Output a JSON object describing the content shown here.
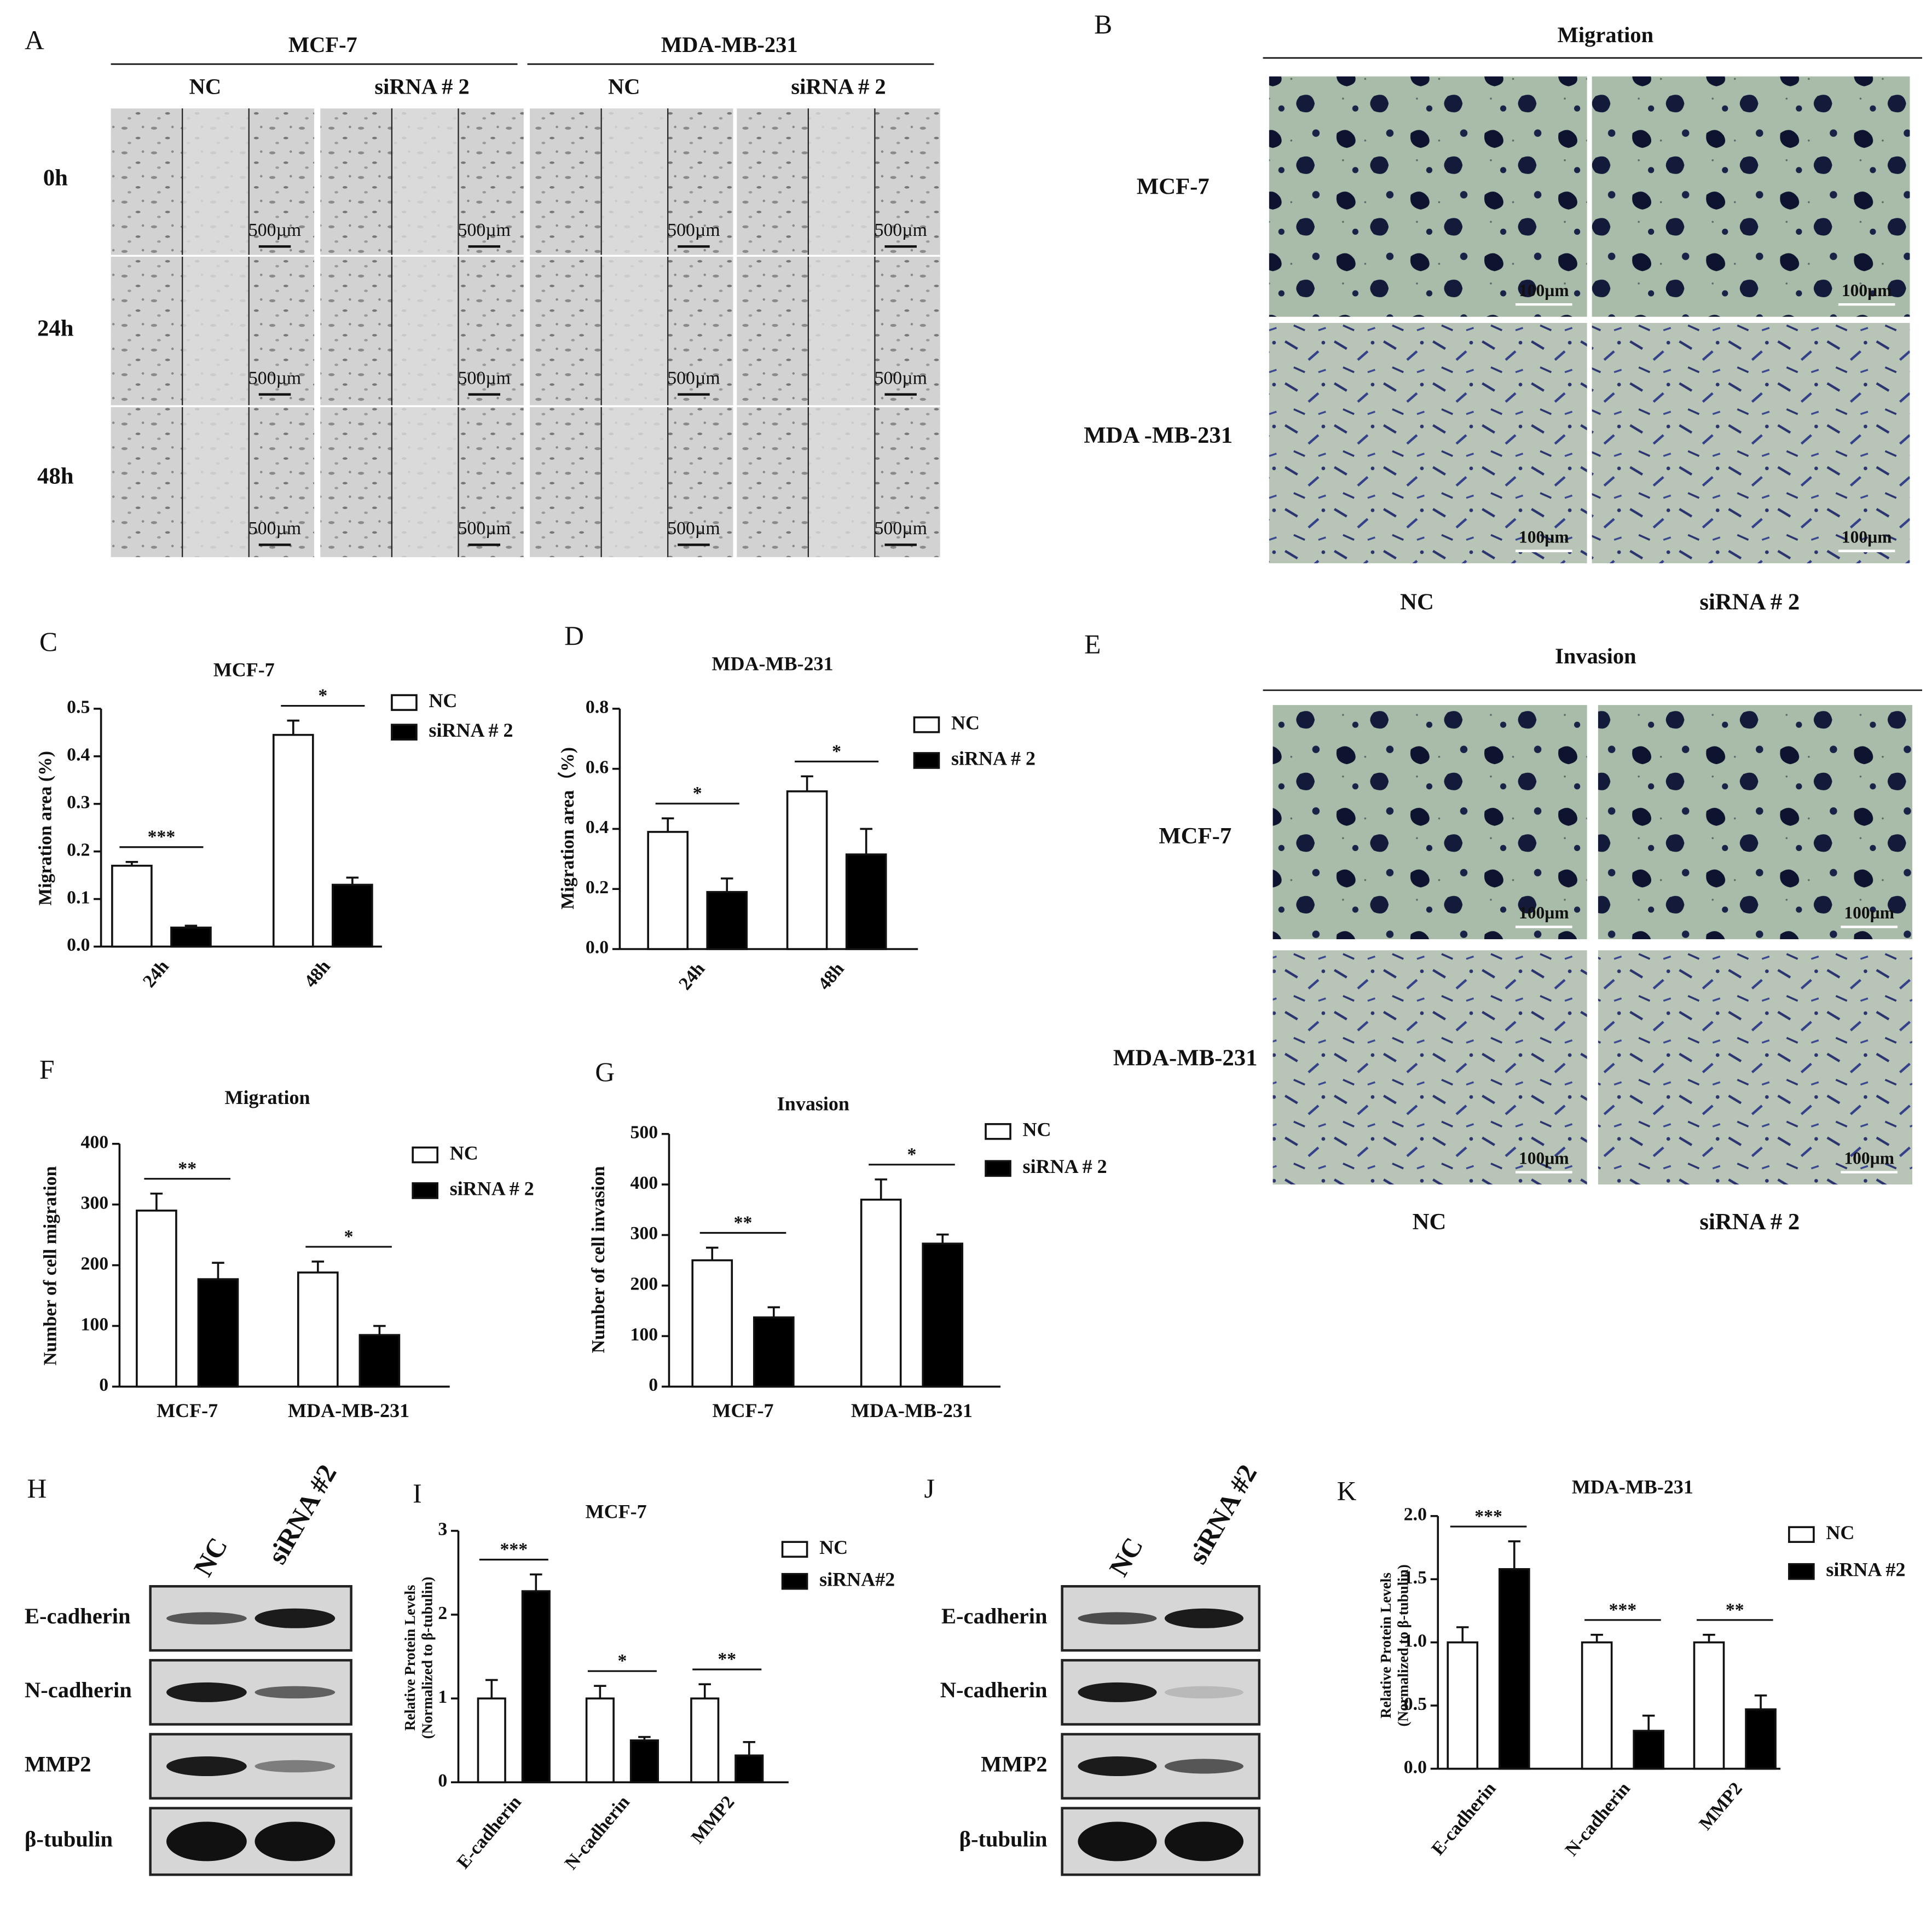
{
  "panel_letters": [
    "A",
    "B",
    "C",
    "D",
    "E",
    "F",
    "G",
    "H",
    "I",
    "J",
    "K"
  ],
  "panel_a": {
    "groups": [
      "MCF-7",
      "MDA-MB-231"
    ],
    "conditions": [
      "NC",
      "siRNA # 2",
      "NC",
      "siRNA # 2"
    ],
    "timepoints": [
      "0h",
      "24h",
      "48h"
    ],
    "scale_bar": "500µm"
  },
  "panel_b": {
    "title": "Migration",
    "rows": [
      "MCF-7",
      "MDA -MB-231"
    ],
    "columns": [
      "NC",
      "siRNA #  2"
    ],
    "scale_bar": "100µm"
  },
  "panel_e": {
    "title": "Invasion",
    "rows": [
      "MCF-7",
      "MDA-MB-231"
    ],
    "columns": [
      "NC",
      "siRNA   # 2"
    ],
    "scale_bar": "100µm"
  },
  "panel_h": {
    "columns": [
      "NC",
      "siRNA #2"
    ],
    "rows": [
      "E-cadherin",
      "N-cadherin",
      "MMP2",
      "β-tubulin"
    ]
  },
  "panel_j": {
    "columns": [
      "NC",
      "siRNA #2"
    ],
    "rows": [
      "E-cadherin",
      "N-cadherin",
      "MMP2",
      "β-tubulin"
    ]
  },
  "chart_data": [
    {
      "type": "bar",
      "title": "MCF-7",
      "ylabel": "Migration area (%)",
      "categories": [
        "24h",
        "48h"
      ],
      "series": [
        {
          "name": "NC",
          "color": "#ffffff",
          "values": [
            0.17,
            0.445
          ],
          "errors": [
            0.008,
            0.03
          ]
        },
        {
          "name": "siRNA # 2",
          "color": "#000000",
          "values": [
            0.04,
            0.13
          ],
          "errors": [
            0.004,
            0.015
          ]
        }
      ],
      "significance": [
        "***",
        "*"
      ],
      "ylim": [
        0,
        0.5
      ],
      "yticks": [
        {
          "value": 0,
          "label": "0.0"
        },
        0.1,
        0.2,
        0.3,
        0.4,
        0.5
      ]
    },
    {
      "type": "bar",
      "title": "MDA-MB-231",
      "ylabel": "Migration area（%)",
      "categories": [
        "24h",
        "48h"
      ],
      "series": [
        {
          "name": "NC",
          "color": "#ffffff",
          "values": [
            0.39,
            0.525
          ],
          "errors": [
            0.045,
            0.05
          ]
        },
        {
          "name": "siRNA # 2",
          "color": "#000000",
          "values": [
            0.19,
            0.315
          ],
          "errors": [
            0.045,
            0.085
          ]
        }
      ],
      "significance": [
        "*",
        "*"
      ],
      "ylim": [
        0,
        0.8
      ],
      "yticks": [
        {
          "value": 0,
          "label": "0.0"
        },
        0.2,
        0.4,
        0.6,
        0.8
      ]
    },
    {
      "type": "bar",
      "title": "Migration",
      "ylabel": "Number of cell migration",
      "categories": [
        "MCF-7",
        "MDA-MB-231"
      ],
      "series": [
        {
          "name": "NC",
          "color": "#ffffff",
          "values": [
            290,
            188
          ],
          "errors": [
            28,
            18
          ]
        },
        {
          "name": "siRNA # 2",
          "color": "#000000",
          "values": [
            177,
            85
          ],
          "errors": [
            27,
            15
          ]
        }
      ],
      "significance": [
        "**",
        "*"
      ],
      "ylim": [
        0,
        400
      ],
      "yticks": [
        0,
        100,
        200,
        300,
        400
      ]
    },
    {
      "type": "bar",
      "title": "Invasion",
      "ylabel": "Number of cell invasion",
      "categories": [
        "MCF-7",
        "MDA-MB-231"
      ],
      "series": [
        {
          "name": "NC",
          "color": "#ffffff",
          "values": [
            250,
            370
          ],
          "errors": [
            25,
            40
          ]
        },
        {
          "name": "siRNA # 2",
          "color": "#000000",
          "values": [
            137,
            283
          ],
          "errors": [
            20,
            18
          ]
        }
      ],
      "significance": [
        "**",
        "*"
      ],
      "ylim": [
        0,
        500
      ],
      "yticks": [
        0,
        100,
        200,
        300,
        400,
        500
      ]
    },
    {
      "type": "bar",
      "title": "MCF-7",
      "ylabel": [
        "Relative Protein Levels",
        "(Normalized to β-tubulin)"
      ],
      "categories": [
        "E-cadherin",
        "N-cadherin",
        "MMP2"
      ],
      "series": [
        {
          "name": "NC",
          "color": "#ffffff",
          "values": [
            1,
            1,
            1
          ],
          "errors": [
            0.22,
            0.15,
            0.17
          ]
        },
        {
          "name": "siRNA#2",
          "color": "#000000",
          "values": [
            2.28,
            0.5,
            0.32
          ],
          "errors": [
            0.2,
            0.04,
            0.16
          ]
        }
      ],
      "significance": [
        "***",
        "*",
        "**"
      ],
      "ylim": [
        0,
        3
      ],
      "yticks": [
        0,
        1,
        2,
        3
      ]
    },
    {
      "type": "bar",
      "title": "MDA-MB-231",
      "ylabel": [
        "Relative Protein Levels",
        "(Normalized to β-tubulin)"
      ],
      "categories": [
        "E-cadherin",
        "N-cadherin",
        "MMP2"
      ],
      "series": [
        {
          "name": "NC",
          "color": "#ffffff",
          "values": [
            1,
            1,
            1
          ],
          "errors": [
            0.12,
            0.06,
            0.06
          ]
        },
        {
          "name": "siRNA #2",
          "color": "#000000",
          "values": [
            1.58,
            0.3,
            0.47
          ],
          "errors": [
            0.22,
            0.12,
            0.11
          ]
        }
      ],
      "significance": [
        "***",
        "***",
        "**"
      ],
      "ylim": [
        0,
        2
      ],
      "yticks": [
        {
          "value": 0,
          "label": "0.0"
        },
        0.5,
        {
          "value": 1,
          "label": "1.0"
        },
        1.5,
        {
          "value": 2,
          "label": "2.0"
        }
      ]
    }
  ]
}
